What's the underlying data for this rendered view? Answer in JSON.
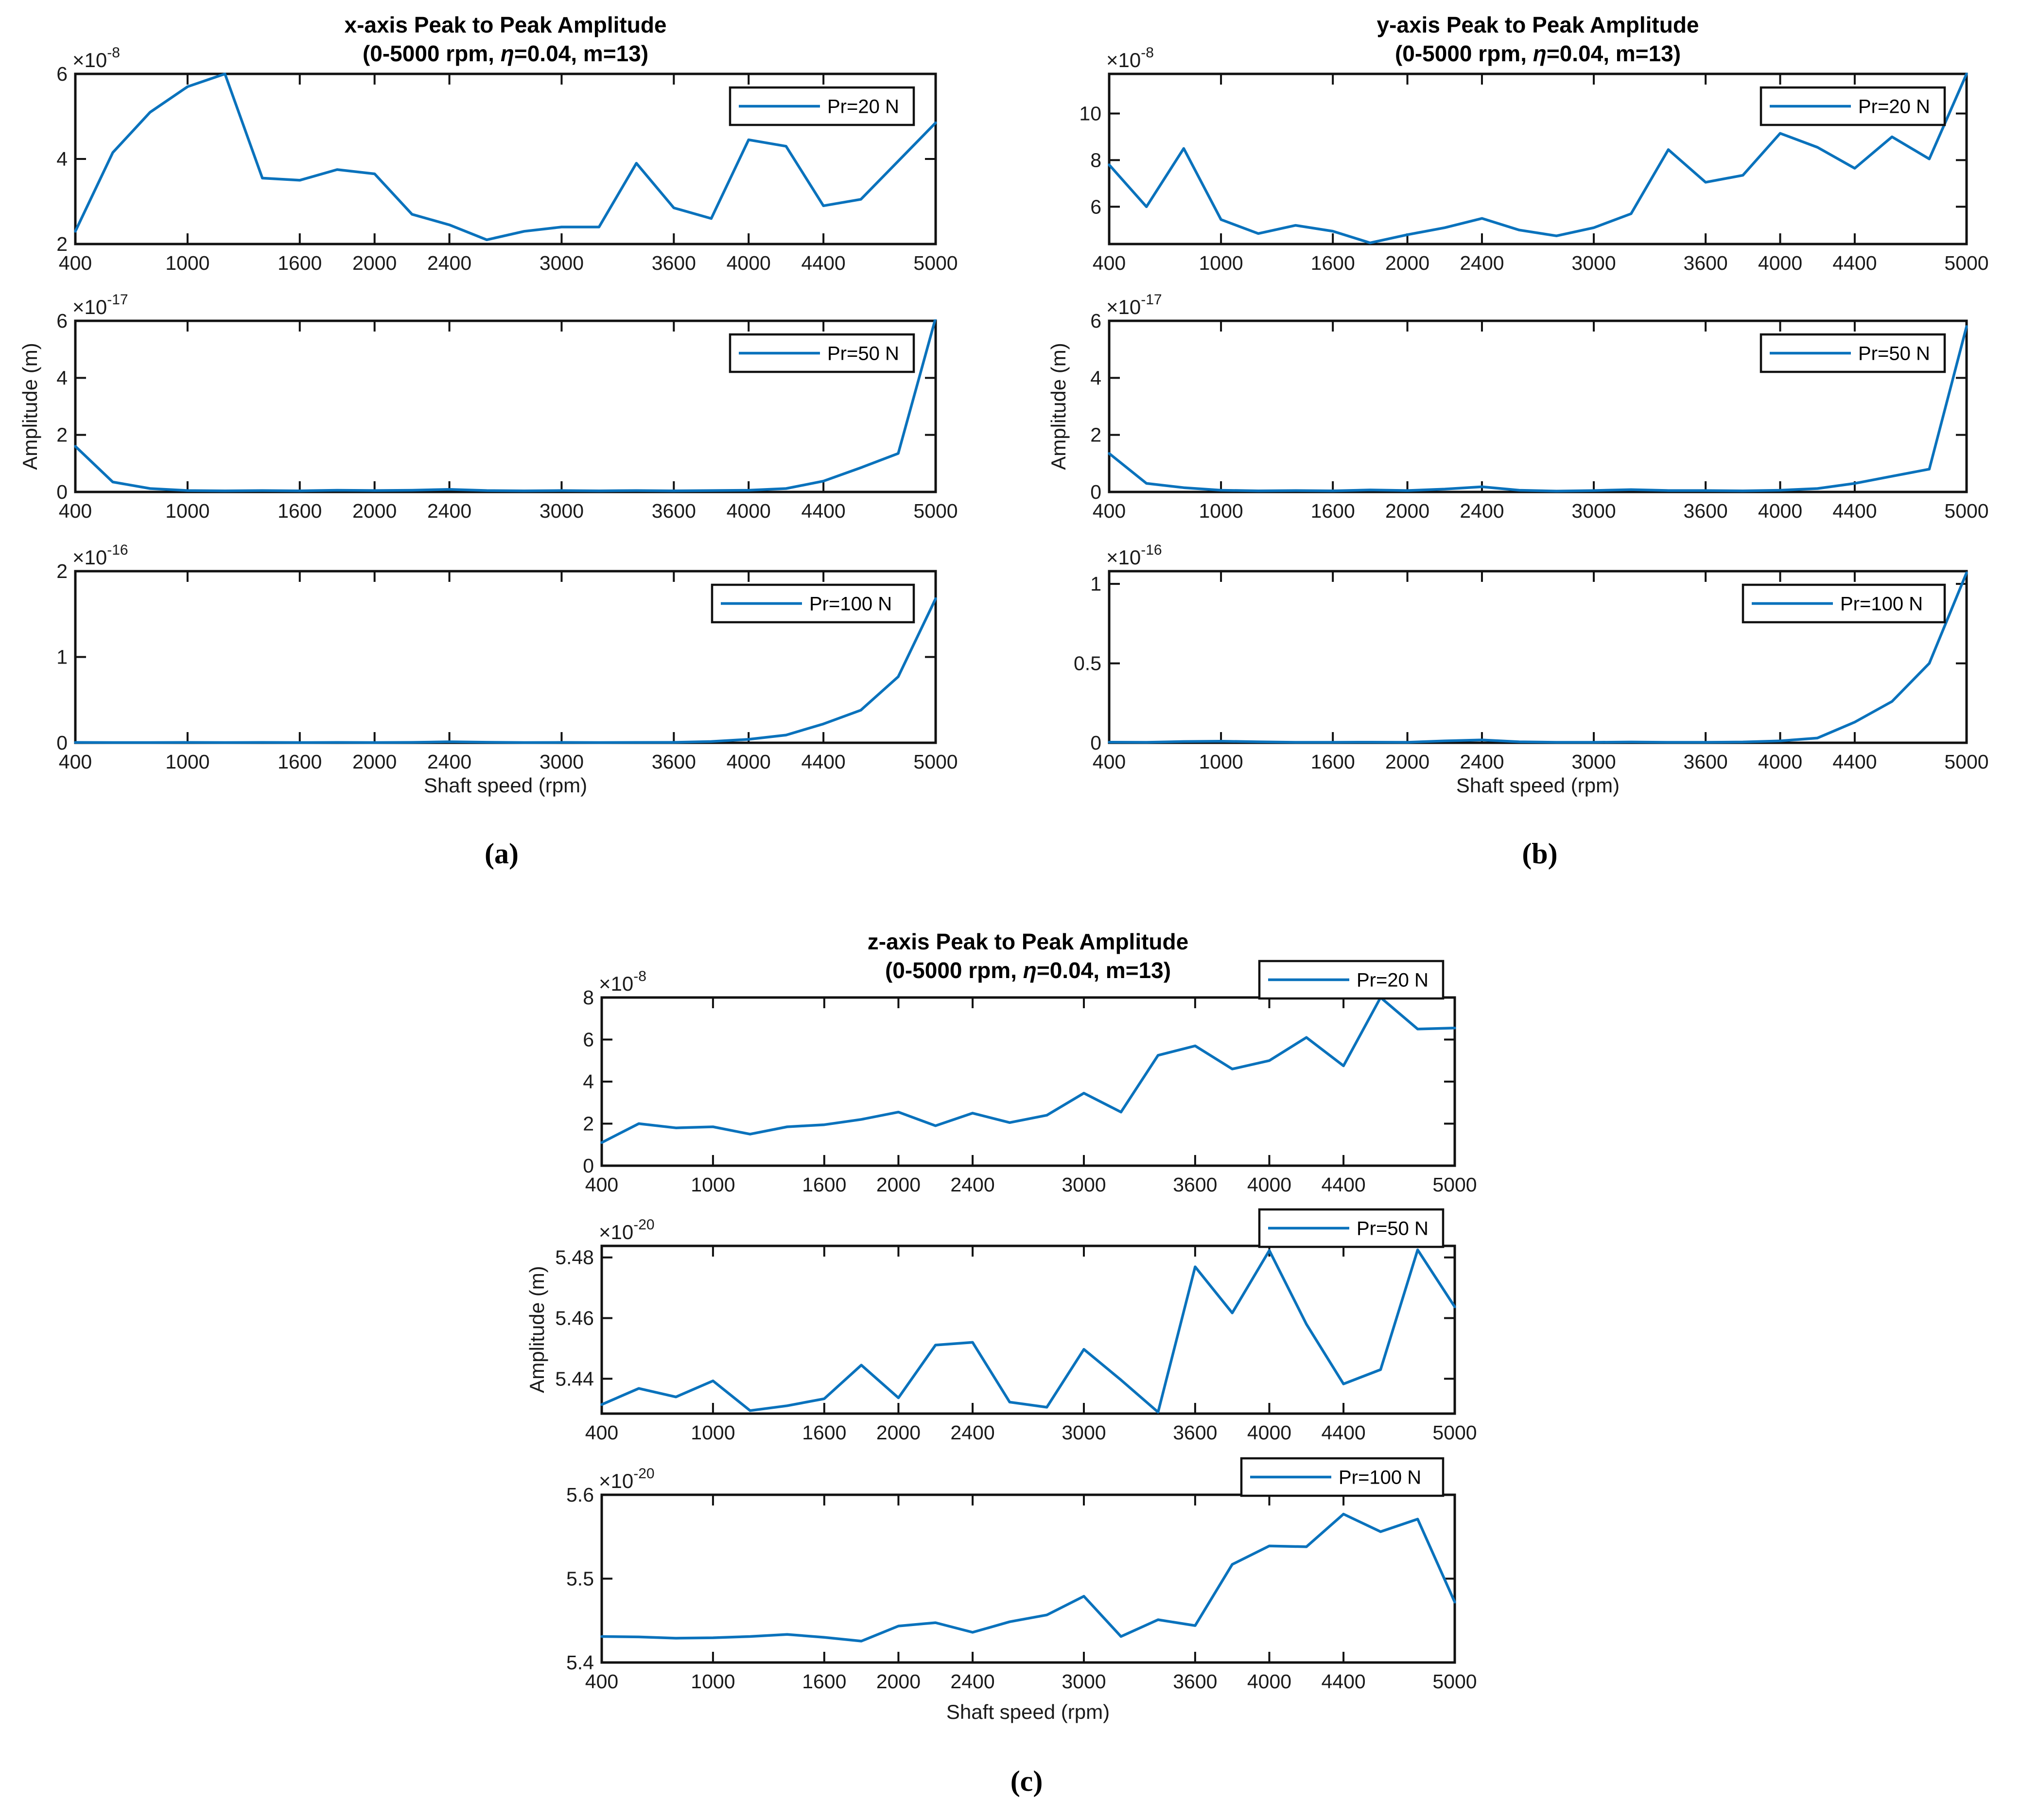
{
  "panels": [
    {
      "id": "a",
      "caption": "(a)",
      "title": {
        "line1": "x-axis Peak to Peak Amplitude",
        "pre": "(0-5000 rpm, ",
        "eta": "η",
        "post": "=0.04, m=13)"
      },
      "xlabel": "Shaft speed (rpm)",
      "ylabel": "Amplitude (m)"
    },
    {
      "id": "b",
      "caption": "(b)",
      "title": {
        "line1": "y-axis Peak to Peak Amplitude",
        "pre": "(0-5000 rpm, ",
        "eta": "η",
        "post": "=0.04, m=13)"
      },
      "xlabel": "Shaft speed (rpm)",
      "ylabel": "Amplitude (m)"
    },
    {
      "id": "c",
      "caption": "(c)",
      "title": {
        "line1": "z-axis Peak to Peak Amplitude",
        "pre": "(0-5000 rpm, ",
        "eta": "η",
        "post": "=0.04, m=13)"
      },
      "xlabel": "Shaft speed (rpm)",
      "ylabel": "Amplitude (m)"
    }
  ],
  "colors": {
    "line": "#0A72BC",
    "axes": "#111111",
    "text": "#1a1a1a",
    "legend_text": "#000000",
    "background": "#ffffff"
  },
  "chart_data": {
    "type": "line",
    "x_label": "Shaft speed (rpm)",
    "y_label": "Amplitude (m)",
    "xlim": [
      400,
      5000
    ],
    "x": [
      400,
      600,
      800,
      1000,
      1200,
      1400,
      1600,
      1800,
      2000,
      2200,
      2400,
      2600,
      2800,
      3000,
      3200,
      3400,
      3600,
      3800,
      4000,
      4200,
      4400,
      4600,
      4800,
      5000
    ],
    "xticks": [
      400,
      1000,
      1600,
      2000,
      2400,
      3000,
      3600,
      4000,
      4400,
      5000
    ],
    "xtick_labels": [
      "400",
      "1000",
      "1600",
      "2000",
      "2400",
      "3000",
      "3600",
      "4000",
      "4400",
      "5000"
    ],
    "exp_base": "×10",
    "grid": false,
    "charts": [
      {
        "id": "a1",
        "panel": "a",
        "row": 0,
        "series": "Pr=20 N",
        "exponent": "-8",
        "ylim": [
          2,
          6
        ],
        "yticks": [
          2,
          4,
          6
        ],
        "ytick_labels": [
          "2",
          "4",
          "6"
        ],
        "values": [
          2.3,
          4.15,
          5.1,
          5.7,
          6.0,
          3.55,
          3.5,
          3.75,
          3.65,
          2.7,
          2.45,
          2.1,
          2.3,
          2.4,
          2.4,
          3.9,
          2.85,
          2.6,
          4.45,
          4.3,
          2.9,
          3.05,
          3.95,
          4.85
        ]
      },
      {
        "id": "a2",
        "panel": "a",
        "row": 1,
        "series": "Pr=50 N",
        "exponent": "-17",
        "ylim": [
          0,
          6
        ],
        "yticks": [
          0,
          2,
          4,
          6
        ],
        "ytick_labels": [
          "0",
          "2",
          "4",
          "6"
        ],
        "values": [
          1.6,
          0.35,
          0.12,
          0.05,
          0.04,
          0.05,
          0.04,
          0.06,
          0.05,
          0.06,
          0.09,
          0.05,
          0.04,
          0.05,
          0.04,
          0.05,
          0.04,
          0.05,
          0.06,
          0.12,
          0.38,
          0.85,
          1.35,
          6.1
        ]
      },
      {
        "id": "a3",
        "panel": "a",
        "row": 2,
        "series": "Pr=100 N",
        "exponent": "-16",
        "ylim": [
          0,
          2
        ],
        "yticks": [
          0,
          1,
          2
        ],
        "ytick_labels": [
          "0",
          "1",
          "2"
        ],
        "values": [
          0.004,
          0.003,
          0.003,
          0.004,
          0.003,
          0.004,
          0.003,
          0.004,
          0.003,
          0.005,
          0.012,
          0.006,
          0.003,
          0.004,
          0.003,
          0.004,
          0.005,
          0.015,
          0.04,
          0.09,
          0.22,
          0.38,
          0.77,
          1.68
        ]
      },
      {
        "id": "b1",
        "panel": "b",
        "row": 0,
        "series": "Pr=20 N",
        "exponent": "-8",
        "ylim": [
          4.4,
          11.7
        ],
        "yticks": [
          6,
          8,
          10
        ],
        "ytick_labels": [
          "6",
          "8",
          "10"
        ],
        "values": [
          7.8,
          6.0,
          8.5,
          5.45,
          4.85,
          5.2,
          4.95,
          4.45,
          4.8,
          5.1,
          5.5,
          5.0,
          4.75,
          5.1,
          5.7,
          8.45,
          7.05,
          7.35,
          9.15,
          8.55,
          7.65,
          9.0,
          8.05,
          11.7
        ]
      },
      {
        "id": "b2",
        "panel": "b",
        "row": 1,
        "series": "Pr=50 N",
        "exponent": "-17",
        "ylim": [
          0,
          6
        ],
        "yticks": [
          0,
          2,
          4,
          6
        ],
        "ytick_labels": [
          "0",
          "2",
          "4",
          "6"
        ],
        "values": [
          1.35,
          0.3,
          0.15,
          0.06,
          0.04,
          0.05,
          0.04,
          0.07,
          0.05,
          0.1,
          0.18,
          0.06,
          0.03,
          0.05,
          0.08,
          0.05,
          0.05,
          0.04,
          0.06,
          0.12,
          0.3,
          0.55,
          0.8,
          5.8
        ]
      },
      {
        "id": "b3",
        "panel": "b",
        "row": 2,
        "series": "Pr=100 N",
        "exponent": "-16",
        "ylim": [
          0,
          1.08
        ],
        "yticks": [
          0,
          0.5,
          1
        ],
        "ytick_labels": [
          "0",
          "0.5",
          "1"
        ],
        "values": [
          0.004,
          0.003,
          0.008,
          0.01,
          0.006,
          0.003,
          0.003,
          0.004,
          0.003,
          0.012,
          0.018,
          0.006,
          0.003,
          0.003,
          0.005,
          0.003,
          0.003,
          0.005,
          0.012,
          0.03,
          0.13,
          0.26,
          0.5,
          1.07
        ]
      },
      {
        "id": "c1",
        "panel": "c",
        "row": 0,
        "series": "Pr=20 N",
        "exponent": "-8",
        "ylim": [
          0,
          8
        ],
        "yticks": [
          0,
          2,
          4,
          6,
          8
        ],
        "ytick_labels": [
          "0",
          "2",
          "4",
          "6",
          "8"
        ],
        "values": [
          1.1,
          2.0,
          1.8,
          1.85,
          1.5,
          1.85,
          1.95,
          2.2,
          2.55,
          1.9,
          2.5,
          2.05,
          2.4,
          3.45,
          2.55,
          5.25,
          5.7,
          4.6,
          5.0,
          6.1,
          4.75,
          8.0,
          6.5,
          6.55
        ]
      },
      {
        "id": "c2",
        "panel": "c",
        "row": 1,
        "series": "Pr=50 N",
        "exponent": "-20",
        "ylim": [
          5.4285,
          5.4838
        ],
        "yticks": [
          5.44,
          5.46,
          5.48
        ],
        "ytick_labels": [
          "5.44",
          "5.46",
          "5.48"
        ],
        "values": [
          5.4315,
          5.4368,
          5.434,
          5.4393,
          5.4295,
          5.4311,
          5.4334,
          5.4445,
          5.4337,
          5.4511,
          5.452,
          5.4323,
          5.4306,
          5.4497,
          5.4396,
          5.429,
          5.4769,
          5.4617,
          5.4823,
          5.458,
          5.4383,
          5.443,
          5.4825,
          5.4637
        ]
      },
      {
        "id": "c3",
        "panel": "c",
        "row": 2,
        "series": "Pr=100 N",
        "exponent": "-20",
        "ylim": [
          5.4,
          5.6
        ],
        "yticks": [
          5.4,
          5.5,
          5.6
        ],
        "ytick_labels": [
          "5.4",
          "5.5",
          "5.6"
        ],
        "values": [
          5.431,
          5.4305,
          5.429,
          5.4295,
          5.431,
          5.4335,
          5.43,
          5.4255,
          5.4435,
          5.4475,
          5.436,
          5.4486,
          5.4567,
          5.479,
          5.431,
          5.451,
          5.444,
          5.517,
          5.539,
          5.538,
          5.577,
          5.556,
          5.571,
          5.472
        ]
      }
    ]
  }
}
